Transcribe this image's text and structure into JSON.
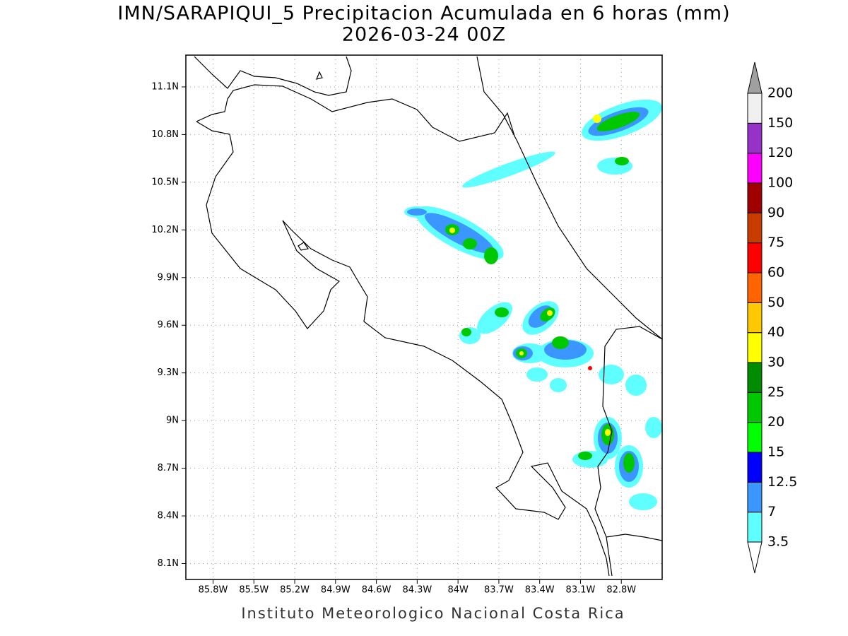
{
  "title": "IMN/SARAPIQUI_5 Precipitacion Acumulada en 6 horas (mm)",
  "subtitle": "2026-03-24 00Z",
  "map": {
    "lonlim": [
      -86.0,
      -82.5
    ],
    "latlim": [
      8.0,
      11.3
    ],
    "lon_ticks": [
      {
        "value": -85.8,
        "label": "85.8W"
      },
      {
        "value": -85.5,
        "label": "85.5W"
      },
      {
        "value": -85.2,
        "label": "85.2W"
      },
      {
        "value": -84.9,
        "label": "84.9W"
      },
      {
        "value": -84.6,
        "label": "84.6W"
      },
      {
        "value": -84.3,
        "label": "84.3W"
      },
      {
        "value": -84.0,
        "label": "84W"
      },
      {
        "value": -83.7,
        "label": "83.7W"
      },
      {
        "value": -83.4,
        "label": "83.4W"
      },
      {
        "value": -83.1,
        "label": "83.1W"
      },
      {
        "value": -82.8,
        "label": "82.8W"
      }
    ],
    "lat_ticks": [
      {
        "value": 11.1,
        "label": "11.1N"
      },
      {
        "value": 10.8,
        "label": "10.8N"
      },
      {
        "value": 10.5,
        "label": "10.5N"
      },
      {
        "value": 10.2,
        "label": "10.2N"
      },
      {
        "value": 9.9,
        "label": "9.9N"
      },
      {
        "value": 9.6,
        "label": "9.6N"
      },
      {
        "value": 9.3,
        "label": "9.3N"
      },
      {
        "value": 9.0,
        "label": "9N"
      },
      {
        "value": 8.7,
        "label": "8.7N"
      },
      {
        "value": 8.4,
        "label": "8.4N"
      },
      {
        "value": 8.1,
        "label": "8.1N"
      }
    ],
    "grid": true
  },
  "colorbar": {
    "levels": [
      3.5,
      7,
      12.5,
      15,
      20,
      25,
      30,
      40,
      50,
      60,
      75,
      90,
      100,
      120,
      150,
      200
    ],
    "colors": [
      "#60ffff",
      "#3c96ff",
      "#0000ff",
      "#00ff00",
      "#00c800",
      "#008c00",
      "#ffff00",
      "#ffc800",
      "#ff6400",
      "#ff0000",
      "#c83c00",
      "#a00000",
      "#ff00ff",
      "#9632c8",
      "#f0f0f0"
    ],
    "under_color": "#ffffff",
    "over_color": "#a0a0a0"
  },
  "footer": "Instituto Meteorologico Nacional Costa Rica"
}
